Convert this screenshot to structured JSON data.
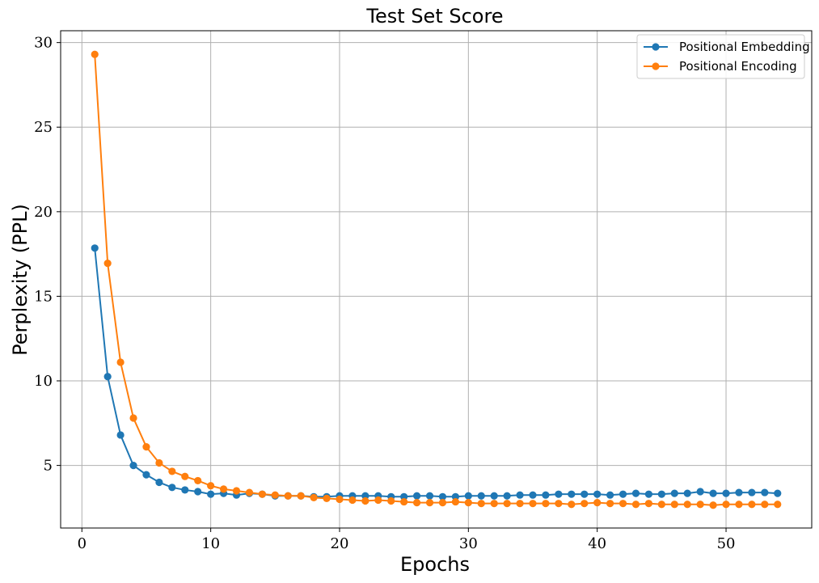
{
  "chart_data": {
    "type": "line",
    "title": "Test Set Score",
    "xlabel": "Epochs",
    "ylabel": "Perplexity (PPL)",
    "xlim": [
      -1.65,
      56.65
    ],
    "ylim": [
      1.3,
      30.7
    ],
    "xticks": [
      0,
      10,
      20,
      30,
      40,
      50
    ],
    "yticks": [
      5,
      10,
      15,
      20,
      25,
      30
    ],
    "grid": true,
    "legend_position": "top-right",
    "x": [
      1,
      2,
      3,
      4,
      5,
      6,
      7,
      8,
      9,
      10,
      11,
      12,
      13,
      14,
      15,
      16,
      17,
      18,
      19,
      20,
      21,
      22,
      23,
      24,
      25,
      26,
      27,
      28,
      29,
      30,
      31,
      32,
      33,
      34,
      35,
      36,
      37,
      38,
      39,
      40,
      41,
      42,
      43,
      44,
      45,
      46,
      47,
      48,
      49,
      50,
      51,
      52,
      53,
      54
    ],
    "series": [
      {
        "name": "Positional Embedding",
        "color": "#1f77b4",
        "values": [
          17.85,
          10.25,
          6.8,
          5.0,
          4.45,
          4.0,
          3.7,
          3.55,
          3.45,
          3.3,
          3.35,
          3.25,
          3.35,
          3.3,
          3.2,
          3.2,
          3.2,
          3.15,
          3.15,
          3.2,
          3.2,
          3.2,
          3.2,
          3.15,
          3.15,
          3.2,
          3.2,
          3.15,
          3.15,
          3.2,
          3.2,
          3.2,
          3.2,
          3.25,
          3.25,
          3.25,
          3.3,
          3.3,
          3.3,
          3.3,
          3.25,
          3.3,
          3.35,
          3.3,
          3.3,
          3.35,
          3.35,
          3.45,
          3.35,
          3.35,
          3.4,
          3.4,
          3.4,
          3.35
        ]
      },
      {
        "name": "Positional Encoding",
        "color": "#ff7f0e",
        "values": [
          29.3,
          16.95,
          11.1,
          7.8,
          6.1,
          5.15,
          4.65,
          4.35,
          4.1,
          3.8,
          3.6,
          3.5,
          3.4,
          3.3,
          3.25,
          3.2,
          3.2,
          3.1,
          3.05,
          3.0,
          2.95,
          2.9,
          2.95,
          2.9,
          2.85,
          2.8,
          2.8,
          2.8,
          2.85,
          2.8,
          2.75,
          2.75,
          2.75,
          2.75,
          2.75,
          2.75,
          2.75,
          2.7,
          2.75,
          2.8,
          2.75,
          2.75,
          2.7,
          2.75,
          2.7,
          2.7,
          2.7,
          2.7,
          2.65,
          2.7,
          2.7,
          2.7,
          2.7,
          2.7
        ]
      }
    ]
  }
}
